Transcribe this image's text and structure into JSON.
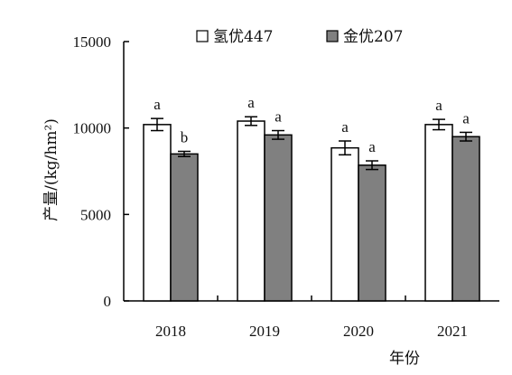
{
  "chart_data": {
    "type": "bar",
    "categories": [
      "2018",
      "2019",
      "2020",
      "2021"
    ],
    "series": [
      {
        "name": "氢优447",
        "color": "#ffffff",
        "values": [
          10200,
          10400,
          8850,
          10200
        ],
        "errors": [
          350,
          250,
          400,
          300
        ],
        "sig": [
          "a",
          "a",
          "a",
          "a"
        ]
      },
      {
        "name": "金优207",
        "color": "#808080",
        "values": [
          8500,
          9600,
          7850,
          9500
        ],
        "errors": [
          150,
          250,
          250,
          250
        ],
        "sig": [
          "b",
          "a",
          "a",
          "a"
        ]
      }
    ],
    "xlabel": "年份",
    "ylabel": "产量/(kg/hm²)",
    "ylim": [
      0,
      15000
    ],
    "yticks": [
      "0",
      "5000",
      "10000",
      "15000"
    ],
    "legend_position": "top"
  }
}
